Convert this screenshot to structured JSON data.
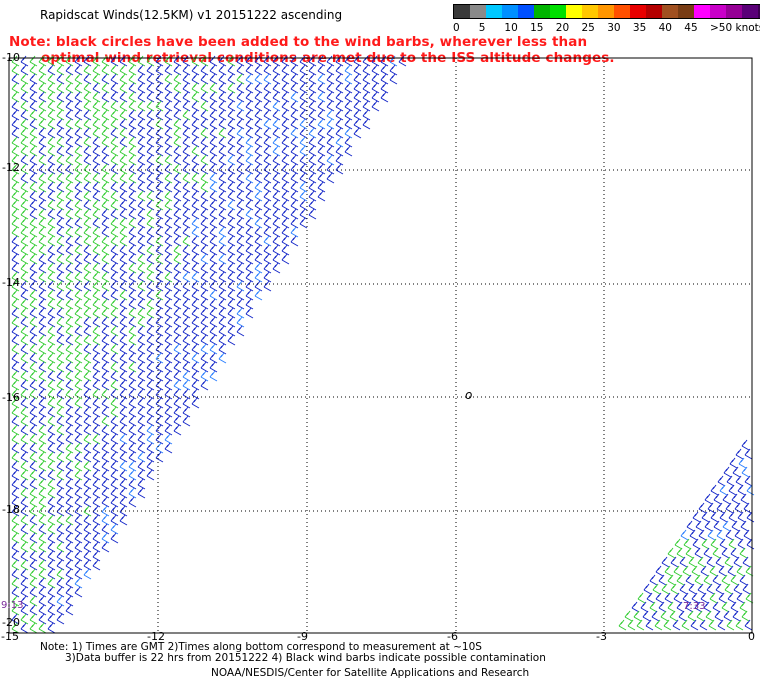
{
  "title": "Rapidscat Winds(12.5KM) v1 20151222 ascending",
  "note_line1": "Note: black circles have been added to the wind barbs, wherever less than",
  "note_line2": "optimal wind retrieval conditions are met due to the ISS altitude changes.",
  "legend": {
    "labels": [
      "0",
      "5",
      "10",
      "15",
      "20",
      "25",
      "30",
      "35",
      "40",
      "45",
      ">50 knots"
    ],
    "colors": [
      "#3a3a3a",
      "#8a8a8a",
      "#00c8ff",
      "#0090ff",
      "#0050ff",
      "#00b400",
      "#00e000",
      "#ffff00",
      "#ffc800",
      "#ff9600",
      "#ff5000",
      "#e80000",
      "#b40000",
      "#a05020",
      "#783c14",
      "#ff00ff",
      "#c800c8",
      "#960096",
      "#5a0078",
      "#3c0050"
    ]
  },
  "axes": {
    "lon_labels": [
      "-15",
      "-12",
      "-9",
      "-6",
      "-3",
      "0"
    ],
    "lat_labels": [
      "-10",
      "-12",
      "-14",
      "-16",
      "-18",
      "-20"
    ]
  },
  "time_labels": [
    "9:13",
    "7:33"
  ],
  "island_marker": "o",
  "footer": {
    "line1": "Note: 1) Times are GMT 2)Times along bottom correspond to measurement at ~10S",
    "line2": "3)Data buffer is 22 hrs from 20151222 4) Black wind barbs indicate possible contamination",
    "line3": "NOAA/NESDIS/Center for Satellite Applications and Research"
  }
}
